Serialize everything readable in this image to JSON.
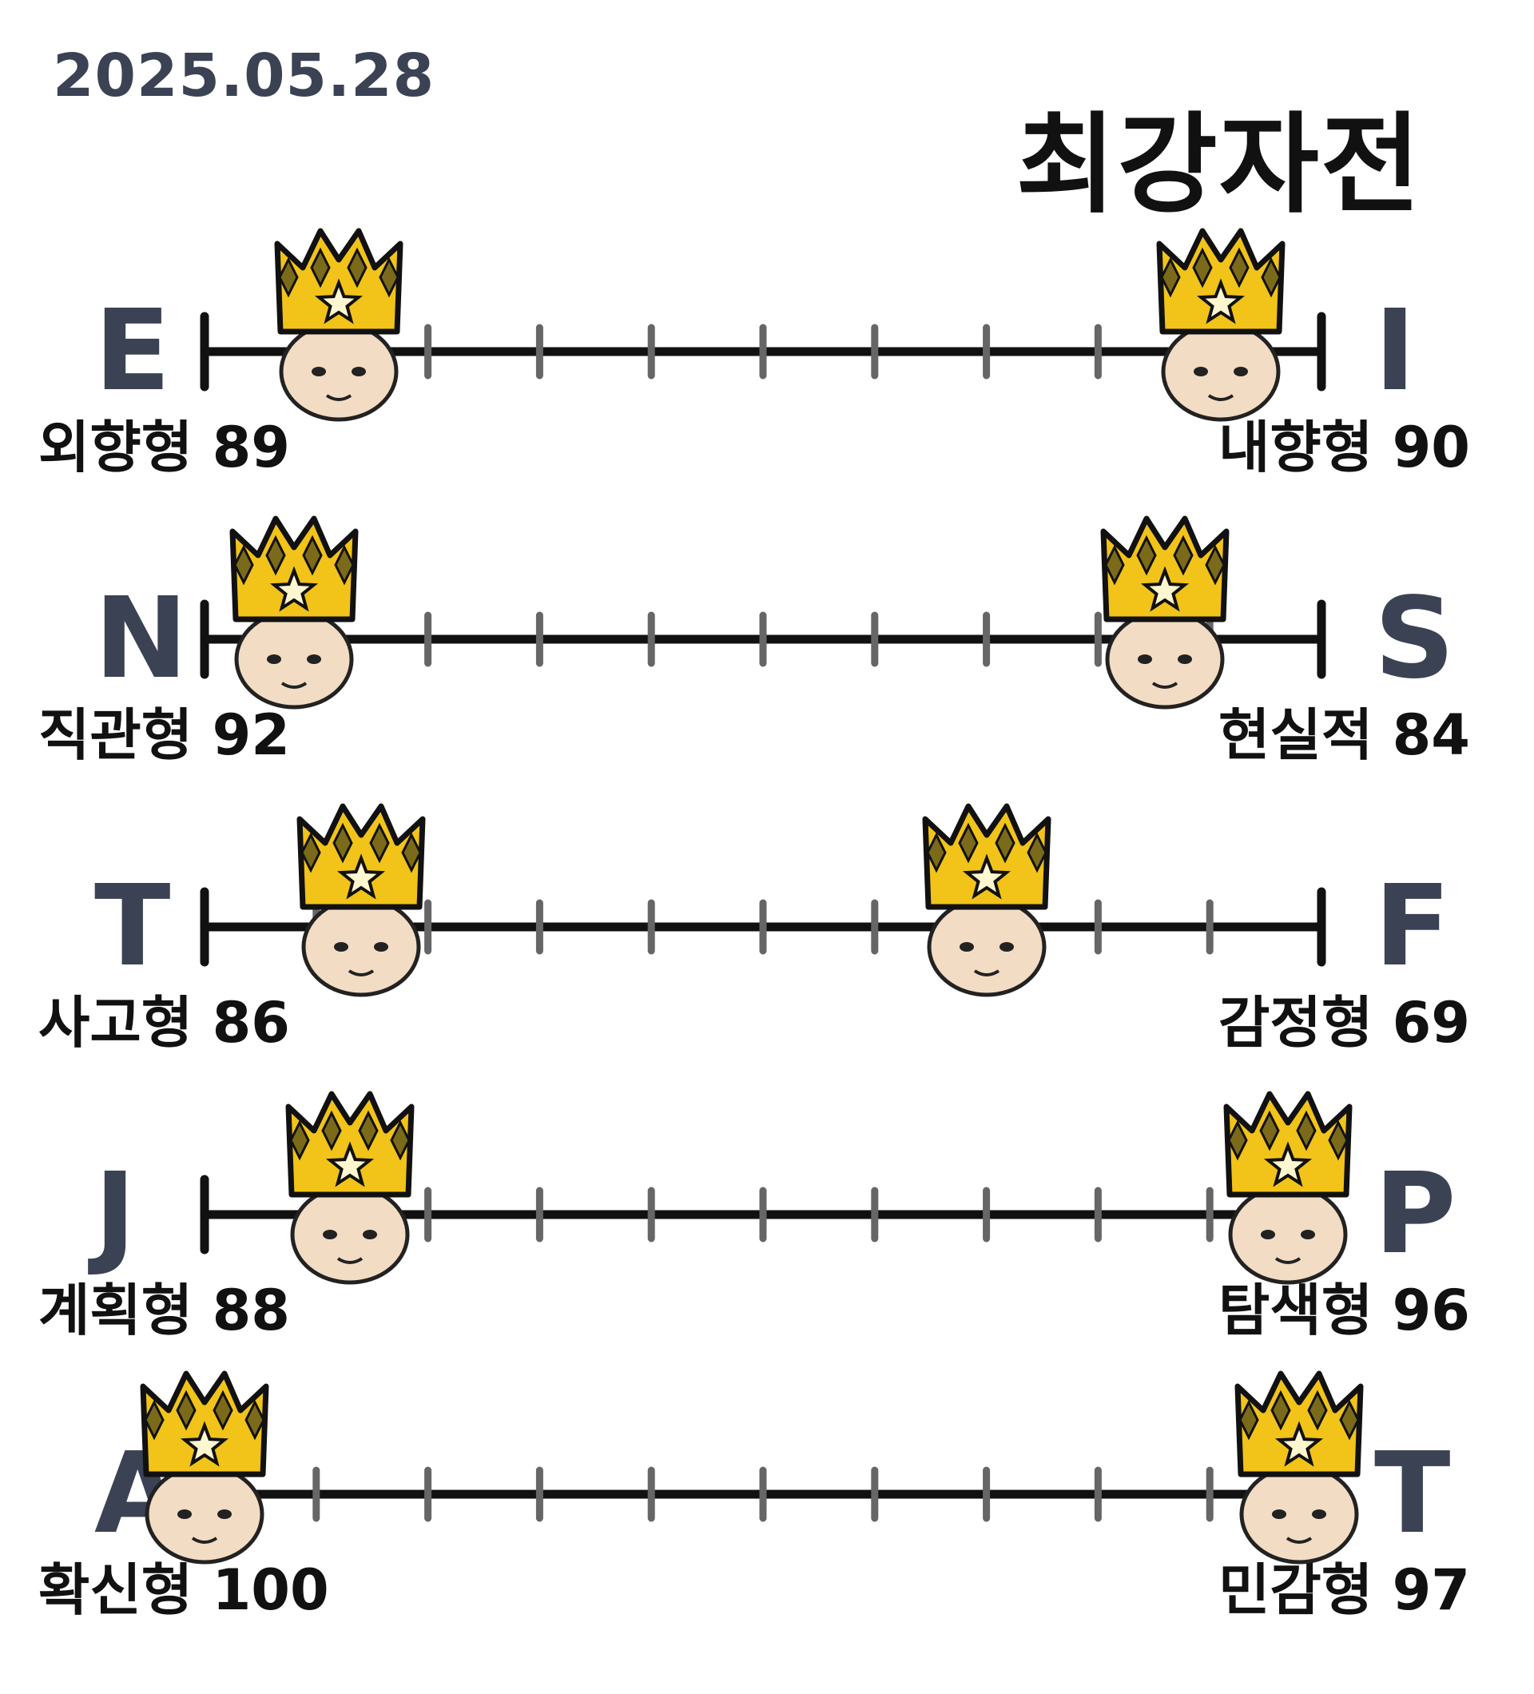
{
  "date": "2025.05.28",
  "title": "최강자전",
  "rows": [
    {
      "left_letter": "E",
      "right_letter": "I",
      "left_label": "외향형 89",
      "right_label": "내향형 90",
      "left_pos": 0.12,
      "right_pos": 0.91
    },
    {
      "left_letter": "N",
      "right_letter": "S",
      "left_label": "직관형 92",
      "right_label": "현실적 84",
      "left_pos": 0.08,
      "right_pos": 0.86
    },
    {
      "left_letter": "T",
      "right_letter": "F",
      "left_label": "사고형 86",
      "right_label": "감정형 69",
      "left_pos": 0.14,
      "right_pos": 0.7
    },
    {
      "left_letter": "J",
      "right_letter": "P",
      "left_label": "계획형 88",
      "right_label": "탐색형 96",
      "left_pos": 0.13,
      "right_pos": 0.97
    },
    {
      "left_letter": "A",
      "right_letter": "T",
      "left_label": "확신형 100",
      "right_label": "민감형 97",
      "left_pos": 0.0,
      "right_pos": 0.98
    }
  ],
  "colors": {
    "letter": "#3b4254",
    "line": "#111111",
    "tick": "#666666",
    "crown": "#f2c318",
    "crown_dark": "#7a6a1a"
  }
}
